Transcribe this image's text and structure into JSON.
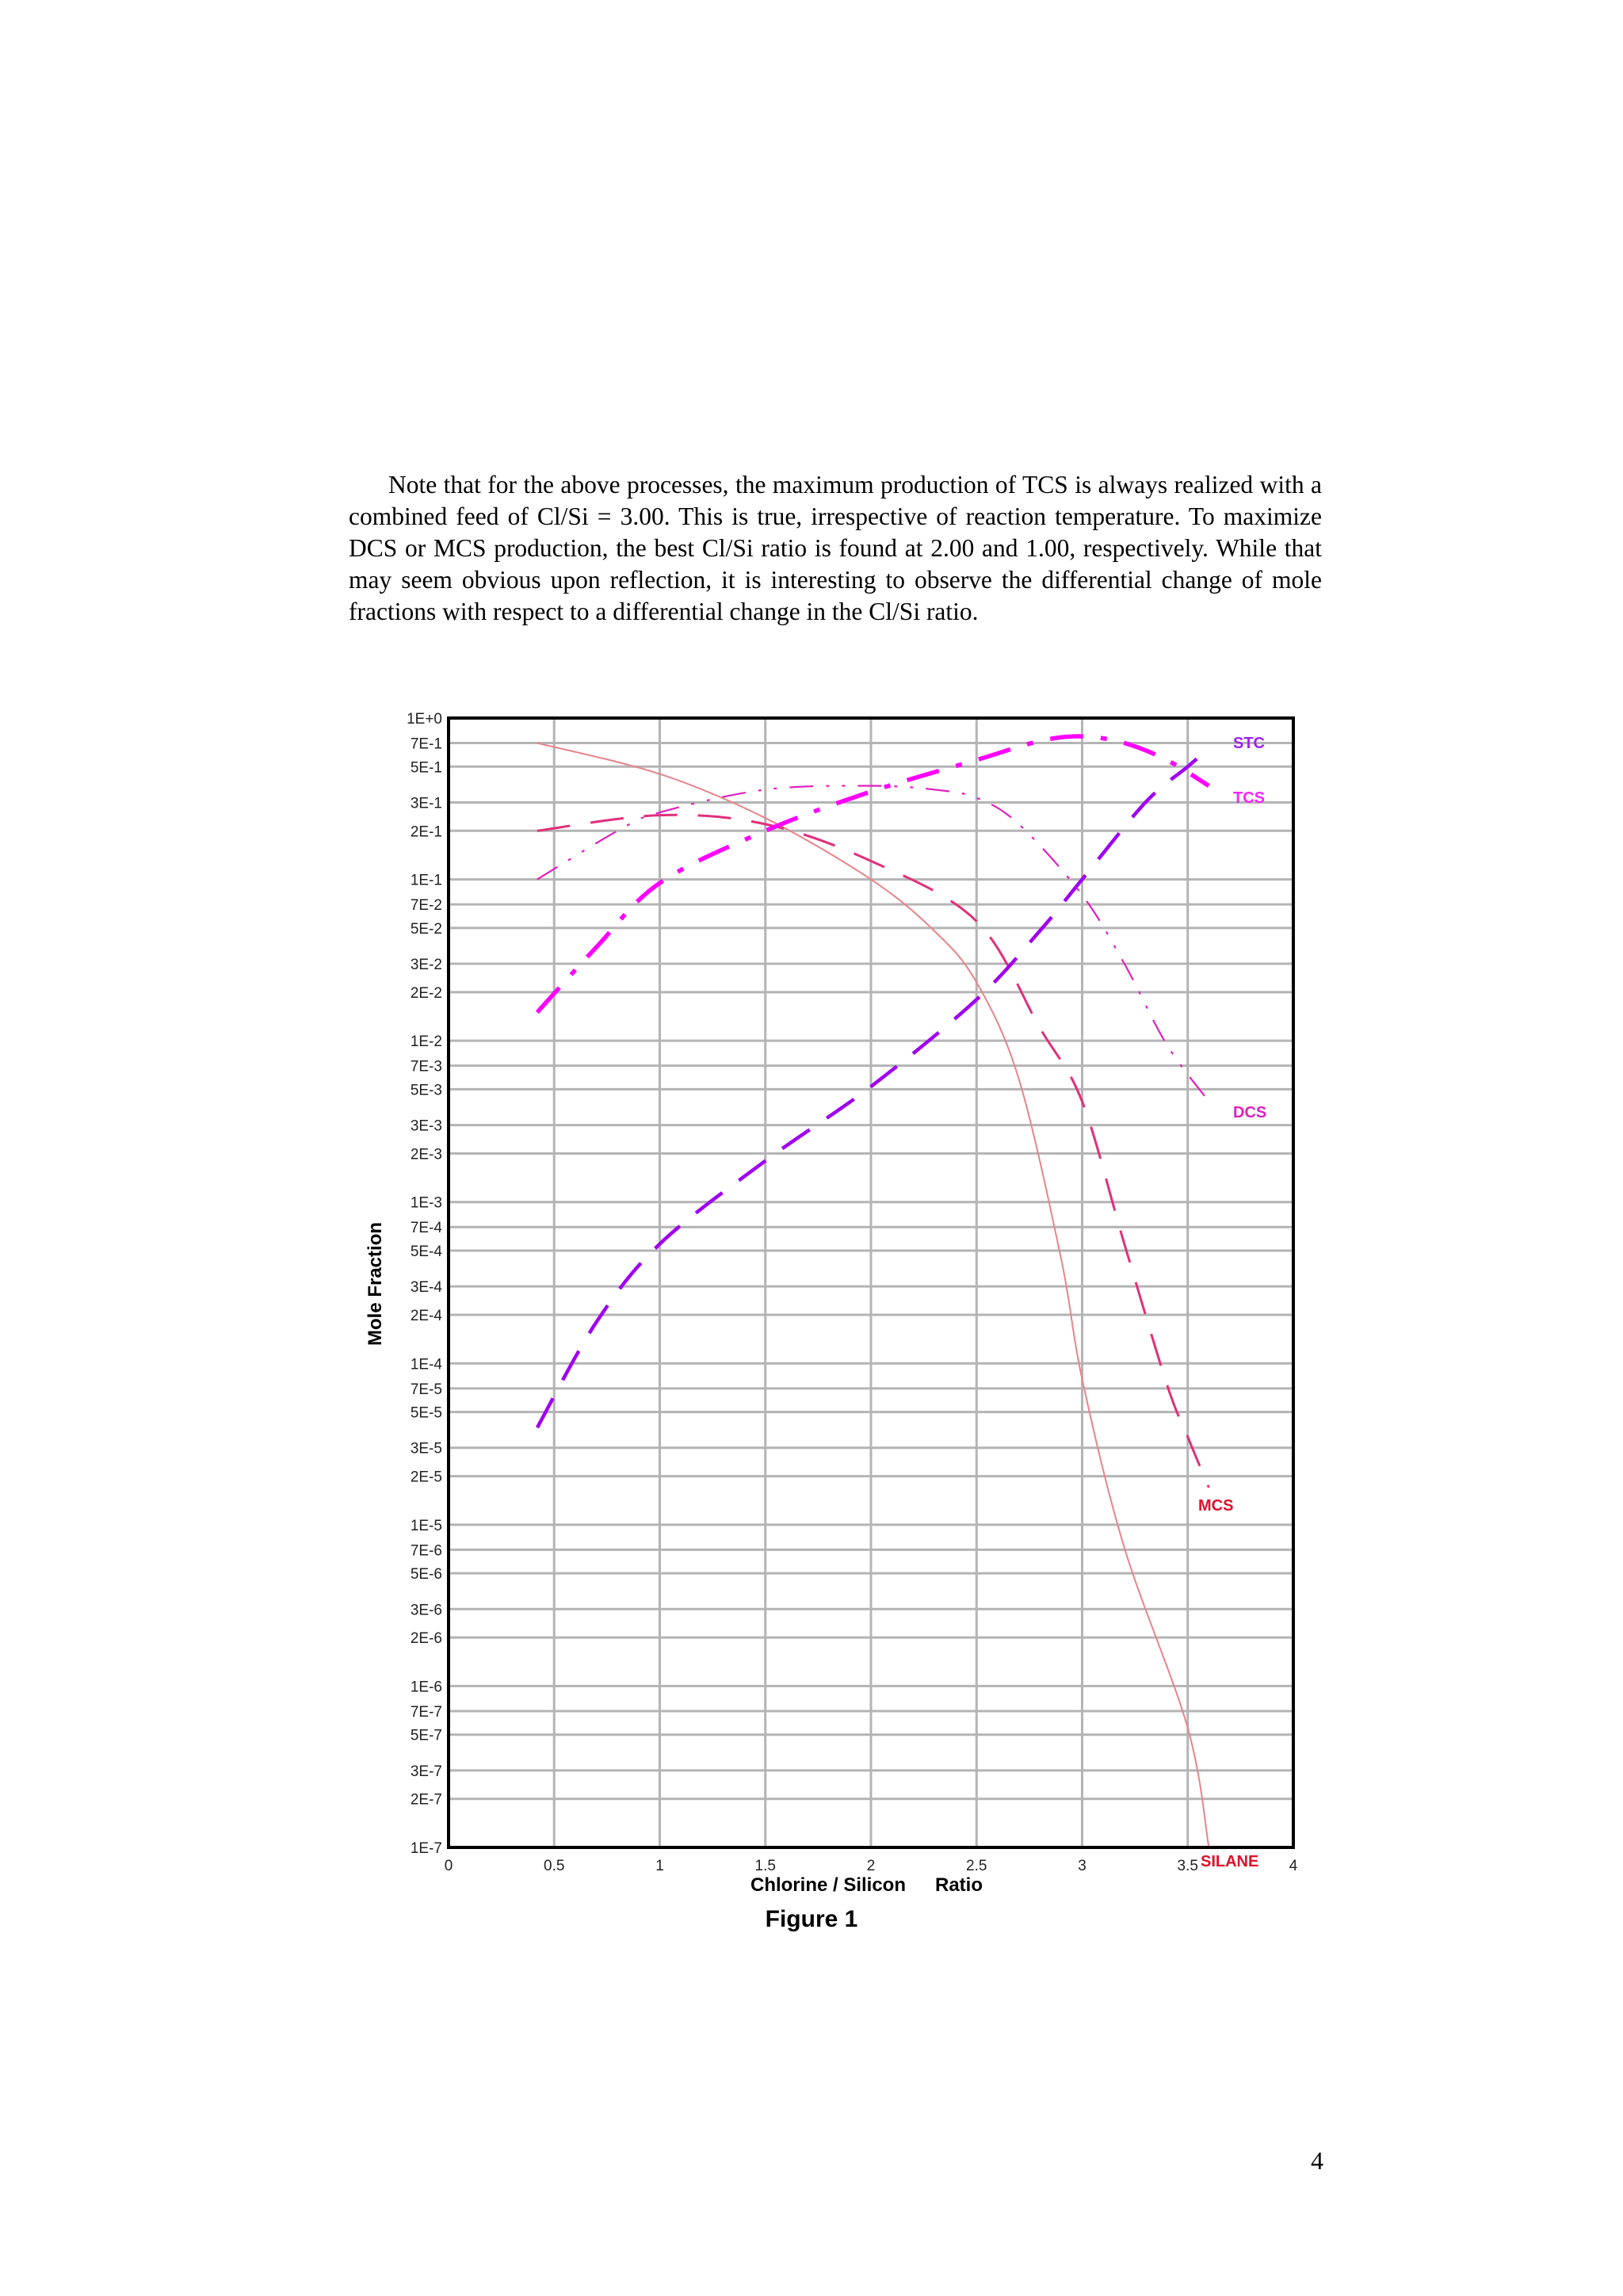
{
  "paragraph": "Note that for the above processes, the maximum production of TCS is always realized with a combined feed of Cl/Si = 3.00. This is true, irrespective of reaction temperature. To maximize DCS or MCS production, the best Cl/Si ratio is found at 2.00 and 1.00, respectively.  While that may seem obvious upon reflection, it is interesting to observe the differential change of mole fractions with respect to a differential change in the Cl/Si ratio.",
  "figure_caption": "Figure 1",
  "page_number": "4",
  "chart_data": {
    "type": "line",
    "xlabel_left": "Chlorine / Silicon",
    "xlabel_right": "Ratio",
    "ylabel": "Mole Fraction",
    "xlim": [
      0,
      4
    ],
    "ylim": [
      1e-07,
      1
    ],
    "yscale": "log",
    "grid": true,
    "x_ticks": [
      "0",
      "0.5",
      "1",
      "1.5",
      "2",
      "2.5",
      "3",
      "3.5",
      "4"
    ],
    "y_ticks": [
      {
        "v": 1,
        "label": "1E+0"
      },
      {
        "v": 0.7,
        "label": "7E-1"
      },
      {
        "v": 0.5,
        "label": "5E-1"
      },
      {
        "v": 0.3,
        "label": "3E-1"
      },
      {
        "v": 0.2,
        "label": "2E-1"
      },
      {
        "v": 0.1,
        "label": "1E-1"
      },
      {
        "v": 0.07,
        "label": "7E-2"
      },
      {
        "v": 0.05,
        "label": "5E-2"
      },
      {
        "v": 0.03,
        "label": "3E-2"
      },
      {
        "v": 0.02,
        "label": "2E-2"
      },
      {
        "v": 0.01,
        "label": "1E-2"
      },
      {
        "v": 0.007,
        "label": "7E-3"
      },
      {
        "v": 0.005,
        "label": "5E-3"
      },
      {
        "v": 0.003,
        "label": "3E-3"
      },
      {
        "v": 0.002,
        "label": "2E-3"
      },
      {
        "v": 0.001,
        "label": "1E-3"
      },
      {
        "v": 0.0007,
        "label": "7E-4"
      },
      {
        "v": 0.0005,
        "label": "5E-4"
      },
      {
        "v": 0.0003,
        "label": "3E-4"
      },
      {
        "v": 0.0002,
        "label": "2E-4"
      },
      {
        "v": 0.0001,
        "label": "1E-4"
      },
      {
        "v": 7e-05,
        "label": "7E-5"
      },
      {
        "v": 5e-05,
        "label": "5E-5"
      },
      {
        "v": 3e-05,
        "label": "3E-5"
      },
      {
        "v": 2e-05,
        "label": "2E-5"
      },
      {
        "v": 1e-05,
        "label": "1E-5"
      },
      {
        "v": 7e-06,
        "label": "7E-6"
      },
      {
        "v": 5e-06,
        "label": "5E-6"
      },
      {
        "v": 3e-06,
        "label": "3E-6"
      },
      {
        "v": 2e-06,
        "label": "2E-6"
      },
      {
        "v": 1e-06,
        "label": "1E-6"
      },
      {
        "v": 7e-07,
        "label": "7E-7"
      },
      {
        "v": 5e-07,
        "label": "5E-7"
      },
      {
        "v": 3e-07,
        "label": "3E-7"
      },
      {
        "v": 2e-07,
        "label": "2E-7"
      },
      {
        "v": 1e-07,
        "label": "1E-7"
      }
    ],
    "series": [
      {
        "name": "SILANE",
        "color": "#e8848c",
        "label_color": "#e0102a",
        "dash": "solid",
        "points": [
          [
            0.42,
            0.7
          ],
          [
            1.0,
            0.45
          ],
          [
            1.5,
            0.24
          ],
          [
            2.0,
            0.1
          ],
          [
            2.3,
            0.048
          ],
          [
            2.5,
            0.023
          ],
          [
            2.7,
            0.0058
          ],
          [
            2.9,
            0.00045
          ],
          [
            3.0,
            8e-05
          ],
          [
            3.2,
            7.2e-06
          ],
          [
            3.5,
            5.5e-07
          ],
          [
            3.6,
            1e-07
          ]
        ]
      },
      {
        "name": "MCS",
        "color": "#e0307a",
        "label_color": "#e0102a",
        "dash": "long",
        "points": [
          [
            0.42,
            0.2
          ],
          [
            1.0,
            0.25
          ],
          [
            1.5,
            0.22
          ],
          [
            2.0,
            0.13
          ],
          [
            2.5,
            0.055
          ],
          [
            2.8,
            0.012
          ],
          [
            3.0,
            0.0042
          ],
          [
            3.2,
            0.00055
          ],
          [
            3.4,
            7.5e-05
          ],
          [
            3.5,
            3.5e-05
          ],
          [
            3.6,
            1.7e-05
          ]
        ]
      },
      {
        "name": "DCS",
        "color": "#e020c0",
        "label_color": "#e020c0",
        "dash": "dashdotdot",
        "points": [
          [
            0.42,
            0.1
          ],
          [
            0.8,
            0.2
          ],
          [
            1.0,
            0.26
          ],
          [
            1.5,
            0.36
          ],
          [
            2.0,
            0.38
          ],
          [
            2.3,
            0.36
          ],
          [
            2.5,
            0.32
          ],
          [
            2.7,
            0.22
          ],
          [
            3.0,
            0.08
          ],
          [
            3.2,
            0.03
          ],
          [
            3.4,
            0.0095
          ],
          [
            3.6,
            0.0042
          ]
        ]
      },
      {
        "name": "TCS",
        "color": "#ff00ff",
        "label_color": "#ff20ff",
        "dash": "dashdot",
        "points": [
          [
            0.42,
            0.015
          ],
          [
            0.7,
            0.038
          ],
          [
            1.0,
            0.095
          ],
          [
            1.5,
            0.2
          ],
          [
            2.0,
            0.35
          ],
          [
            2.5,
            0.55
          ],
          [
            2.8,
            0.72
          ],
          [
            3.0,
            0.77
          ],
          [
            3.2,
            0.7
          ],
          [
            3.4,
            0.55
          ],
          [
            3.6,
            0.38
          ]
        ]
      },
      {
        "name": "STC",
        "color": "#a000f0",
        "label_color": "#a020f0",
        "dash": "long",
        "points": [
          [
            0.42,
            4e-05
          ],
          [
            0.7,
            0.00018
          ],
          [
            1.0,
            0.00055
          ],
          [
            1.5,
            0.0018
          ],
          [
            2.0,
            0.0052
          ],
          [
            2.5,
            0.018
          ],
          [
            2.8,
            0.048
          ],
          [
            3.0,
            0.1
          ],
          [
            3.3,
            0.3
          ],
          [
            3.5,
            0.5
          ],
          [
            3.6,
            0.65
          ]
        ]
      }
    ]
  }
}
